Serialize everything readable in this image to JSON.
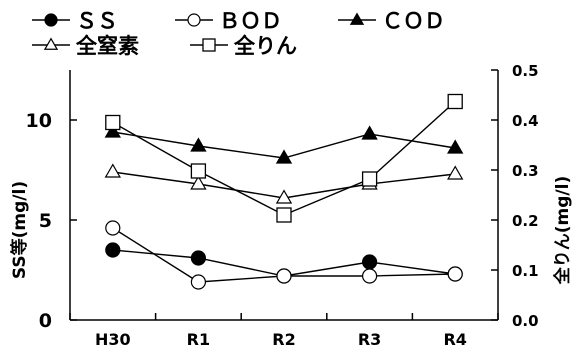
{
  "chart_data": {
    "type": "line",
    "categories": [
      "H30",
      "R1",
      "R2",
      "R3",
      "R4"
    ],
    "ylabel_left": "SS等(mg/l)",
    "ylabel_right": "全りん(mg/l)",
    "y_left": {
      "lim": [
        0,
        12.5
      ],
      "ticks": [
        "0",
        "5",
        "10"
      ],
      "tick_values": [
        0,
        5,
        10
      ]
    },
    "y_right": {
      "lim": [
        0,
        0.5
      ],
      "ticks": [
        "0.0",
        "0.1",
        "0.2",
        "0.3",
        "0.4",
        "0.5"
      ],
      "tick_values": [
        0,
        0.1,
        0.2,
        0.3,
        0.4,
        0.5
      ]
    },
    "grid": false,
    "legend_position": "top",
    "series": [
      {
        "name": "ＳＳ",
        "axis": "left",
        "marker": "filled-circle",
        "values": [
          3.5,
          3.1,
          2.2,
          2.9,
          2.3
        ]
      },
      {
        "name": "ＢＯＤ",
        "axis": "left",
        "marker": "open-circle",
        "values": [
          4.6,
          1.9,
          2.2,
          2.2,
          2.3
        ]
      },
      {
        "name": "ＣＯＤ",
        "axis": "left",
        "marker": "filled-triangle",
        "values": [
          9.4,
          8.7,
          8.1,
          9.3,
          8.6
        ]
      },
      {
        "name": "全窒素",
        "axis": "left",
        "marker": "open-triangle",
        "values": [
          7.4,
          6.8,
          6.1,
          6.8,
          7.3
        ]
      },
      {
        "name": "全りん",
        "axis": "right",
        "marker": "open-square",
        "values": [
          0.395,
          0.298,
          0.21,
          0.282,
          0.437
        ]
      }
    ]
  }
}
